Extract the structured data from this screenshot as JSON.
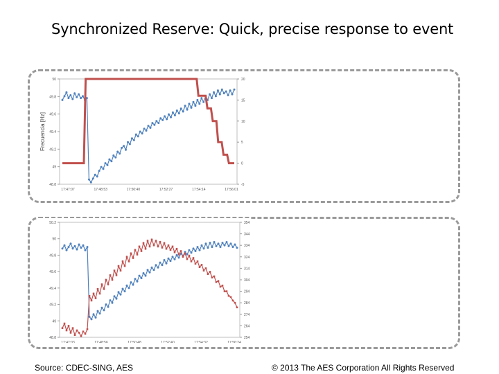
{
  "slide": {
    "title": "Synchronized Reserve:  Quick, precise response to event",
    "source": "Source:  CDEC-SING, AES",
    "copyright": "© 2013 The AES Corporation All Rights Reserved"
  },
  "colors": {
    "frequency": "#4f81bd",
    "power": "#c0504d",
    "panel_border": "#9a9a9a"
  },
  "chart_data": [
    {
      "type": "line",
      "ylabel": "Frecuencia [Hz]",
      "ylim": [
        49.0,
        50.1
      ],
      "yticks": [
        "50",
        "49.8",
        "49.6",
        "49.4",
        "49.2",
        "49",
        "48.8"
      ],
      "y2ticks": [
        "20",
        "15",
        "10",
        "5",
        "0",
        "-5"
      ],
      "xticks": [
        "17:47:07",
        "17:48:53",
        "17:50:40",
        "17:52:27",
        "17:54:14",
        "17:56:01"
      ],
      "series": [
        {
          "name": "",
          "axis": "left",
          "values": [
            49.88,
            49.92,
            49.96,
            49.9,
            49.93,
            49.89,
            49.95,
            49.91,
            49.94,
            49.9,
            49.92,
            49.88,
            49.9,
            49.05,
            49.02,
            49.06,
            49.1,
            49.08,
            49.14,
            49.18,
            49.16,
            49.22,
            49.2,
            49.26,
            49.24,
            49.3,
            49.28,
            49.34,
            49.32,
            49.38,
            49.4,
            49.36,
            49.44,
            49.42,
            49.48,
            49.46,
            49.52,
            49.5,
            49.55,
            49.53,
            49.58,
            49.56,
            49.61,
            49.59,
            49.64,
            49.62,
            49.66,
            49.64,
            49.69,
            49.67,
            49.71,
            49.68,
            49.73,
            49.7,
            49.75,
            49.72,
            49.77,
            49.74,
            49.79,
            49.76,
            49.82,
            49.78,
            49.84,
            49.8,
            49.86,
            49.82,
            49.88,
            49.84,
            49.9,
            49.86,
            49.92,
            49.88,
            49.94,
            49.9,
            49.96,
            49.92,
            49.98,
            49.94,
            49.99,
            49.95,
            49.97,
            49.93,
            49.98,
            49.94,
            49.99
          ]
        },
        {
          "name": "",
          "axis": "right",
          "step": [
            [
              0,
              0
            ],
            [
              12,
              0
            ],
            [
              13,
              20
            ],
            [
              75,
              20
            ],
            [
              76,
              16
            ],
            [
              80,
              16
            ],
            [
              81,
              13
            ],
            [
              83,
              13
            ],
            [
              84,
              10
            ],
            [
              86,
              10
            ],
            [
              87,
              5
            ],
            [
              89,
              5
            ],
            [
              90,
              2
            ],
            [
              92,
              2
            ],
            [
              93,
              0
            ],
            [
              95,
              0
            ],
            [
              96,
              0
            ]
          ]
        }
      ]
    },
    {
      "type": "line",
      "ylabel": "",
      "ylim": [
        48.8,
        50.2
      ],
      "yticks": [
        "50.2",
        "50",
        "49.8",
        "49.6",
        "49.4",
        "49.2",
        "49",
        "48.8"
      ],
      "y2ticks": [
        "354",
        "344",
        "334",
        "324",
        "314",
        "304",
        "294",
        "284",
        "274",
        "264",
        "254"
      ],
      "xticks": [
        "17:47:03",
        "17:48:56",
        "17:50:48",
        "17:52:40",
        "17:54:32",
        "17:56:24"
      ],
      "series": [
        {
          "name": "",
          "axis": "left",
          "values": [
            49.88,
            49.92,
            49.86,
            49.9,
            49.94,
            49.88,
            49.91,
            49.87,
            49.93,
            49.89,
            49.92,
            49.86,
            49.9,
            49.05,
            49.02,
            49.08,
            49.04,
            49.12,
            49.09,
            49.16,
            49.13,
            49.2,
            49.17,
            49.25,
            49.22,
            49.3,
            49.27,
            49.35,
            49.32,
            49.39,
            49.36,
            49.43,
            49.4,
            49.47,
            49.44,
            49.51,
            49.48,
            49.55,
            49.52,
            49.58,
            49.55,
            49.62,
            49.59,
            49.65,
            49.62,
            49.68,
            49.65,
            49.71,
            49.68,
            49.74,
            49.7,
            49.76,
            49.73,
            49.78,
            49.75,
            49.8,
            49.77,
            49.82,
            49.79,
            49.84,
            49.81,
            49.86,
            49.83,
            49.88,
            49.85,
            49.9,
            49.86,
            49.92,
            49.88,
            49.94,
            49.89,
            49.95,
            49.9,
            49.96,
            49.91,
            49.94,
            49.9,
            49.95,
            49.92,
            49.96,
            49.91,
            49.94,
            49.9,
            49.93,
            49.89
          ]
        },
        {
          "name": "",
          "axis": "right",
          "values": [
            262,
            266,
            260,
            264,
            258,
            262,
            256,
            260,
            258,
            255,
            259,
            257,
            261,
            290,
            286,
            292,
            288,
            296,
            292,
            300,
            296,
            304,
            300,
            308,
            304,
            312,
            308,
            316,
            312,
            320,
            316,
            324,
            320,
            327,
            323,
            330,
            326,
            333,
            329,
            336,
            331,
            338,
            333,
            339,
            334,
            338,
            333,
            337,
            332,
            336,
            331,
            334,
            330,
            333,
            328,
            331,
            326,
            329,
            324,
            327,
            322,
            325,
            320,
            323,
            318,
            320,
            315,
            317,
            312,
            314,
            309,
            311,
            306,
            307,
            302,
            303,
            298,
            299,
            294,
            294,
            290,
            289,
            286,
            284,
            280
          ]
        }
      ]
    }
  ]
}
